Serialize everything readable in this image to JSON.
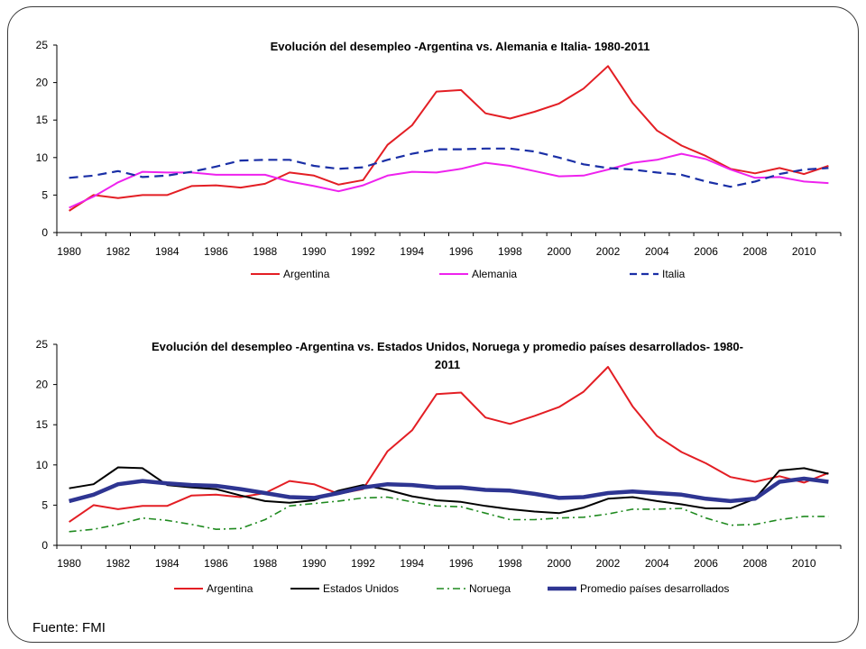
{
  "source_note": "Fuente: FMI",
  "colors": {
    "argentina": "#e31e24",
    "alemania": "#ee22ee",
    "italia": "#1a2fa6",
    "estados_unidos": "#000000",
    "noruega": "#1f8a1f",
    "promedio": "#2e3592"
  },
  "chart_data": [
    {
      "type": "line",
      "title": "Evolución del desempleo -Argentina vs. Alemania e Italia- 1980-2011",
      "xlabel": "",
      "ylabel": "",
      "ylim": [
        0,
        25
      ],
      "yticks": [
        "0",
        "5",
        "10",
        "15",
        "20",
        "25"
      ],
      "xticks": [
        "1980",
        "1982",
        "1984",
        "1986",
        "1988",
        "1990",
        "1992",
        "1994",
        "1996",
        "1998",
        "2000",
        "2002",
        "2004",
        "2006",
        "2008",
        "2010"
      ],
      "x": [
        1980,
        1981,
        1982,
        1983,
        1984,
        1985,
        1986,
        1987,
        1988,
        1989,
        1990,
        1991,
        1992,
        1993,
        1994,
        1995,
        1996,
        1997,
        1998,
        1999,
        2000,
        2001,
        2002,
        2003,
        2004,
        2005,
        2006,
        2007,
        2008,
        2009,
        2010,
        2011
      ],
      "grid": false,
      "legend_position": "bottom",
      "series": [
        {
          "name": "Argentina",
          "style": "solid",
          "values": [
            2.9,
            5.0,
            4.6,
            5.0,
            5.0,
            6.2,
            6.3,
            6.0,
            6.5,
            8.0,
            7.6,
            6.4,
            7.0,
            11.7,
            14.3,
            18.8,
            19.0,
            15.9,
            15.2,
            16.1,
            17.2,
            19.2,
            22.2,
            17.3,
            13.6,
            11.6,
            10.2,
            8.5,
            7.9,
            8.6,
            7.8,
            8.9
          ]
        },
        {
          "name": "Alemania",
          "style": "solid",
          "values": [
            3.3,
            4.8,
            6.7,
            8.1,
            8.0,
            8.0,
            7.7,
            7.7,
            7.7,
            6.8,
            6.2,
            5.5,
            6.3,
            7.6,
            8.1,
            8.0,
            8.5,
            9.3,
            8.9,
            8.2,
            7.5,
            7.6,
            8.4,
            9.3,
            9.7,
            10.5,
            9.8,
            8.4,
            7.3,
            7.4,
            6.8,
            6.6
          ]
        },
        {
          "name": "Italia",
          "style": "dash",
          "values": [
            7.3,
            7.6,
            8.2,
            7.4,
            7.6,
            8.1,
            8.8,
            9.6,
            9.7,
            9.7,
            8.9,
            8.5,
            8.7,
            9.7,
            10.5,
            11.1,
            11.1,
            11.2,
            11.2,
            10.8,
            10.0,
            9.1,
            8.6,
            8.4,
            8.0,
            7.7,
            6.8,
            6.1,
            6.8,
            7.8,
            8.4,
            8.6
          ]
        }
      ]
    },
    {
      "type": "line",
      "title": "Evolución del desempleo -Argentina vs. Estados Unidos, Noruega y promedio países desarrollados- 1980-2011",
      "title_lines": [
        "Evolución del desempleo -Argentina vs. Estados Unidos, Noruega y promedio países desarrollados- 1980-",
        "2011"
      ],
      "xlabel": "",
      "ylabel": "",
      "ylim": [
        0,
        25
      ],
      "yticks": [
        "0",
        "5",
        "10",
        "15",
        "20",
        "25"
      ],
      "xticks": [
        "1980",
        "1982",
        "1984",
        "1986",
        "1988",
        "1990",
        "1992",
        "1994",
        "1996",
        "1998",
        "2000",
        "2002",
        "2004",
        "2006",
        "2008",
        "2010"
      ],
      "x": [
        1980,
        1981,
        1982,
        1983,
        1984,
        1985,
        1986,
        1987,
        1988,
        1989,
        1990,
        1991,
        1992,
        1993,
        1994,
        1995,
        1996,
        1997,
        1998,
        1999,
        2000,
        2001,
        2002,
        2003,
        2004,
        2005,
        2006,
        2007,
        2008,
        2009,
        2010,
        2011
      ],
      "grid": false,
      "legend_position": "bottom",
      "series": [
        {
          "name": "Argentina",
          "style": "solid",
          "values": [
            2.9,
            5.0,
            4.5,
            4.9,
            4.9,
            6.2,
            6.3,
            6.0,
            6.5,
            8.0,
            7.6,
            6.4,
            7.0,
            11.7,
            14.3,
            18.8,
            19.0,
            15.9,
            15.1,
            16.1,
            17.2,
            19.1,
            22.2,
            17.3,
            13.6,
            11.6,
            10.2,
            8.5,
            7.9,
            8.6,
            7.8,
            9.0
          ]
        },
        {
          "name": "Estados Unidos",
          "style": "solid",
          "values": [
            7.1,
            7.6,
            9.7,
            9.6,
            7.5,
            7.2,
            7.0,
            6.2,
            5.5,
            5.3,
            5.6,
            6.8,
            7.5,
            6.9,
            6.1,
            5.6,
            5.4,
            4.9,
            4.5,
            4.2,
            4.0,
            4.7,
            5.8,
            6.0,
            5.5,
            5.1,
            4.6,
            4.6,
            5.8,
            9.3,
            9.6,
            8.9
          ]
        },
        {
          "name": "Noruega",
          "style": "dashdot",
          "values": [
            1.7,
            2.0,
            2.6,
            3.4,
            3.1,
            2.6,
            2.0,
            2.1,
            3.2,
            4.9,
            5.2,
            5.5,
            5.9,
            6.0,
            5.4,
            4.9,
            4.8,
            4.0,
            3.2,
            3.2,
            3.4,
            3.5,
            3.9,
            4.5,
            4.5,
            4.6,
            3.4,
            2.5,
            2.6,
            3.2,
            3.6,
            3.6
          ]
        },
        {
          "name": "Promedio países desarrollados",
          "style": "thick",
          "values": [
            5.5,
            6.3,
            7.6,
            8.0,
            7.7,
            7.5,
            7.4,
            7.0,
            6.5,
            6.0,
            5.9,
            6.5,
            7.2,
            7.6,
            7.5,
            7.2,
            7.2,
            6.9,
            6.8,
            6.4,
            5.9,
            6.0,
            6.5,
            6.7,
            6.5,
            6.3,
            5.8,
            5.5,
            5.8,
            7.9,
            8.3,
            7.9
          ]
        }
      ]
    }
  ]
}
